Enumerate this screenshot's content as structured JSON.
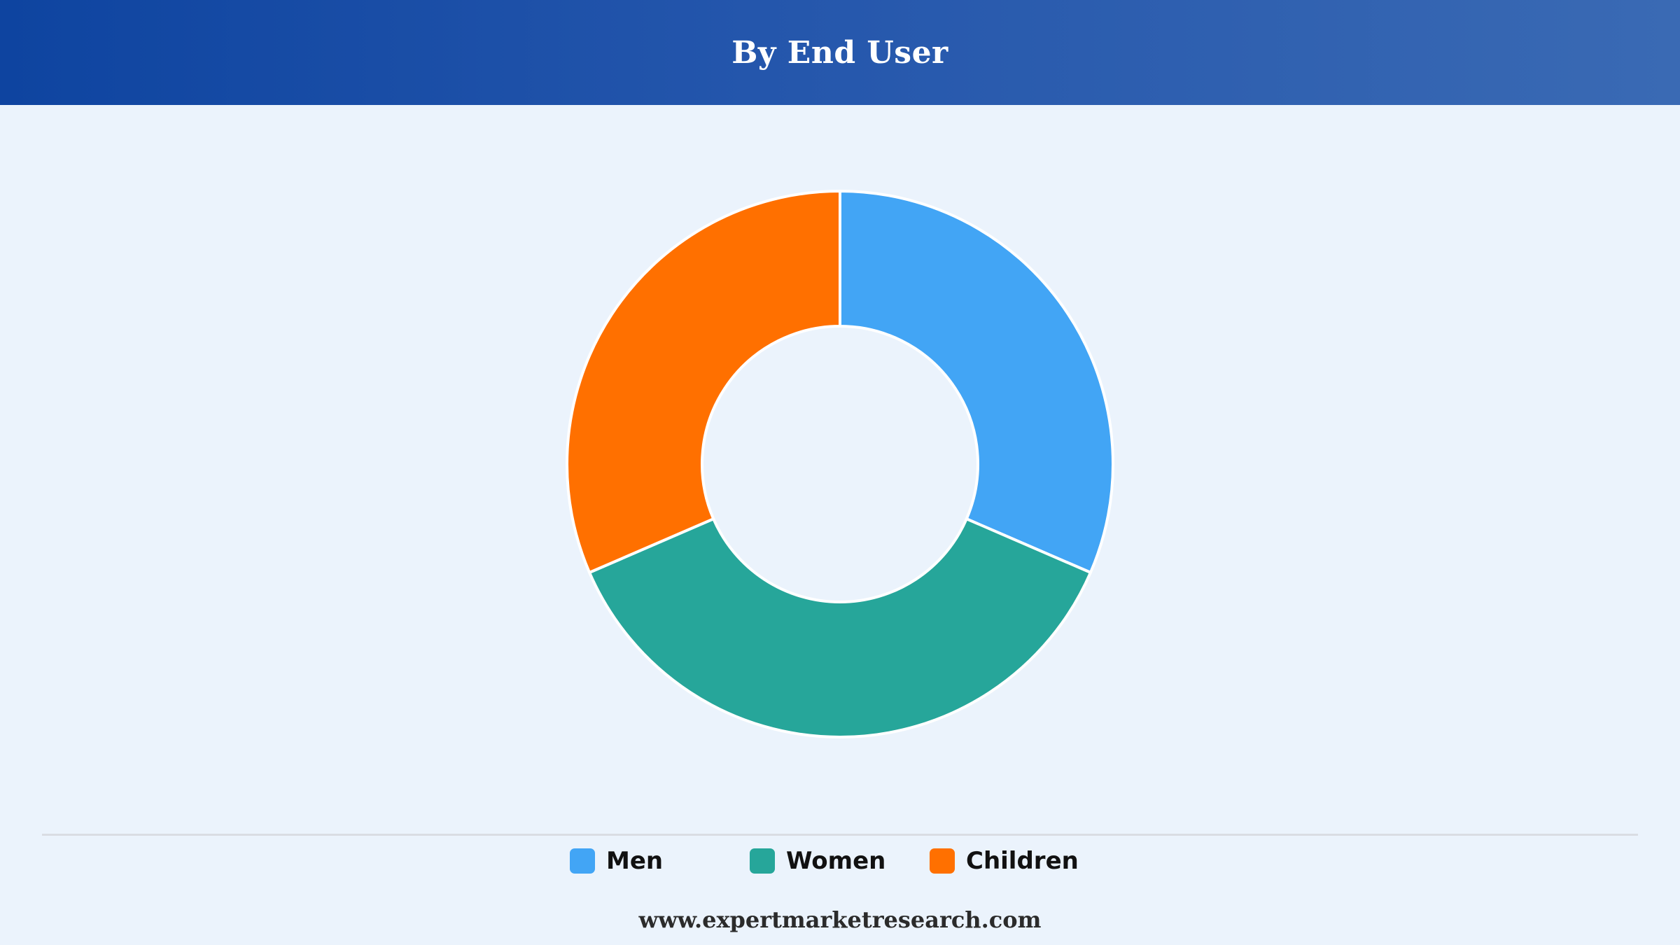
{
  "header": {
    "title": "By End User"
  },
  "chart_data": {
    "type": "pie",
    "variant": "donut",
    "categories": [
      "Men",
      "Women",
      "Children"
    ],
    "values": [
      31.5,
      37,
      31.5
    ],
    "unit": "",
    "colors": [
      "#42a5f5",
      "#26a69a",
      "#ff7000"
    ],
    "legend_position": "bottom",
    "title": "",
    "xlabel": "",
    "ylabel": ""
  },
  "legend": {
    "items": [
      {
        "label": "Men",
        "color": "#42a5f5"
      },
      {
        "label": "Women",
        "color": "#26a69a"
      },
      {
        "label": "Children",
        "color": "#ff7000"
      }
    ]
  },
  "footer": {
    "source": "www.expertmarketresearch.com"
  }
}
